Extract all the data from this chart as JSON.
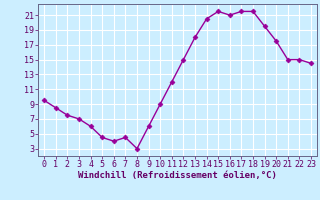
{
  "x": [
    0,
    1,
    2,
    3,
    4,
    5,
    6,
    7,
    8,
    9,
    10,
    11,
    12,
    13,
    14,
    15,
    16,
    17,
    18,
    19,
    20,
    21,
    22,
    23
  ],
  "y": [
    9.5,
    8.5,
    7.5,
    7,
    6,
    4.5,
    4,
    4.5,
    3,
    6,
    9,
    12,
    15,
    18,
    20.5,
    21.5,
    21,
    21.5,
    21.5,
    19.5,
    17.5,
    15,
    15,
    14.5
  ],
  "line_color": "#990099",
  "marker": "D",
  "marker_size": 2.5,
  "bg_color": "#cceeff",
  "grid_color": "#ffffff",
  "xlabel": "Windchill (Refroidissement éolien,°C)",
  "xlabel_fontsize": 6.5,
  "xticks": [
    0,
    1,
    2,
    3,
    4,
    5,
    6,
    7,
    8,
    9,
    10,
    11,
    12,
    13,
    14,
    15,
    16,
    17,
    18,
    19,
    20,
    21,
    22,
    23
  ],
  "yticks": [
    3,
    5,
    7,
    9,
    11,
    13,
    15,
    17,
    19,
    21
  ],
  "ylim": [
    2.0,
    22.5
  ],
  "xlim": [
    -0.5,
    23.5
  ],
  "tick_fontsize": 6,
  "tick_color": "#660066",
  "spine_color": "#666688"
}
